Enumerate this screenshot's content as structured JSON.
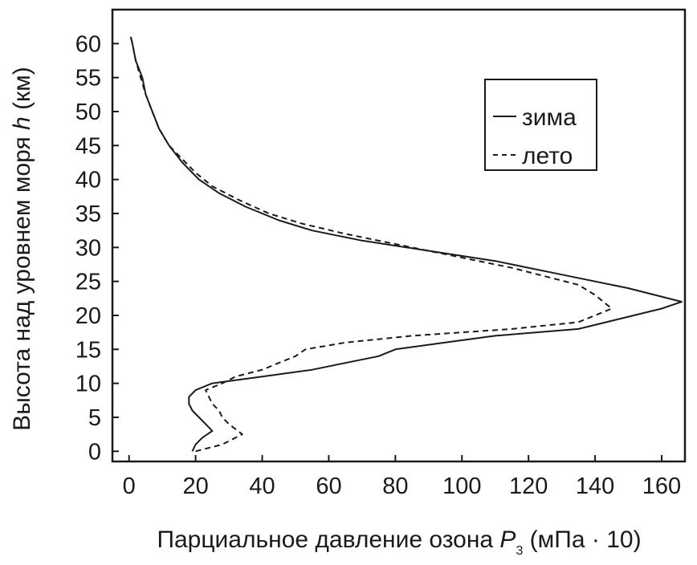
{
  "chart_data": {
    "type": "line",
    "xlabel": {
      "main": "Парциальное давление озона ",
      "var": "P",
      "sub": "3",
      "unit": " (мПа · 10)"
    },
    "ylabel": {
      "main": "Высота над уровнем моря ",
      "var": "h",
      "unit": " (км)"
    },
    "xlim": [
      -5,
      167
    ],
    "ylim": [
      -1.5,
      65
    ],
    "xticks": [
      0,
      20,
      40,
      60,
      80,
      100,
      120,
      140,
      160
    ],
    "yticks": [
      0,
      5,
      10,
      15,
      20,
      25,
      30,
      35,
      40,
      45,
      50,
      55,
      60
    ],
    "grid": false,
    "legend_position": "top-right",
    "series": [
      {
        "name": "зима",
        "style": "solid",
        "color": "#1a1a1a",
        "points": [
          [
            19,
            0
          ],
          [
            20,
            1
          ],
          [
            22,
            2
          ],
          [
            25,
            3
          ],
          [
            23,
            4
          ],
          [
            21,
            5
          ],
          [
            19,
            6
          ],
          [
            18,
            7
          ],
          [
            18,
            8
          ],
          [
            20,
            9
          ],
          [
            25,
            10
          ],
          [
            40,
            11
          ],
          [
            55,
            12
          ],
          [
            65,
            13
          ],
          [
            75,
            14
          ],
          [
            80,
            15
          ],
          [
            95,
            16
          ],
          [
            110,
            17
          ],
          [
            135,
            18
          ],
          [
            160,
            21
          ],
          [
            166,
            22
          ],
          [
            150,
            24
          ],
          [
            130,
            26
          ],
          [
            110,
            28
          ],
          [
            90,
            29.5
          ],
          [
            70,
            31
          ],
          [
            55,
            32.5
          ],
          [
            45,
            34
          ],
          [
            35,
            36
          ],
          [
            27,
            38
          ],
          [
            21,
            40
          ],
          [
            16,
            42.5
          ],
          [
            12,
            45
          ],
          [
            9,
            47.5
          ],
          [
            7,
            50
          ],
          [
            5,
            52.5
          ],
          [
            4,
            55
          ],
          [
            2,
            57.5
          ],
          [
            1,
            60
          ],
          [
            0.5,
            61
          ]
        ]
      },
      {
        "name": "лето",
        "style": "dashed",
        "color": "#1a1a1a",
        "points": [
          [
            20,
            0
          ],
          [
            28,
            1
          ],
          [
            34,
            2.5
          ],
          [
            30,
            4
          ],
          [
            28,
            5
          ],
          [
            27,
            6
          ],
          [
            25,
            7
          ],
          [
            24,
            8
          ],
          [
            23,
            9
          ],
          [
            28,
            10
          ],
          [
            32,
            11
          ],
          [
            40,
            12
          ],
          [
            45,
            13
          ],
          [
            50,
            14
          ],
          [
            53,
            15
          ],
          [
            65,
            16
          ],
          [
            85,
            17
          ],
          [
            115,
            18
          ],
          [
            135,
            19
          ],
          [
            145,
            21
          ],
          [
            140,
            23
          ],
          [
            135,
            24.5
          ],
          [
            115,
            27
          ],
          [
            95,
            29
          ],
          [
            80,
            30.5
          ],
          [
            65,
            32
          ],
          [
            52,
            33.5
          ],
          [
            42,
            35
          ],
          [
            33,
            37
          ],
          [
            25,
            39
          ],
          [
            20,
            41
          ],
          [
            16,
            43
          ],
          [
            12,
            45
          ],
          [
            9,
            47.5
          ],
          [
            7,
            50
          ],
          [
            5,
            52.5
          ],
          [
            3.5,
            55
          ],
          [
            2,
            57.5
          ],
          [
            1,
            60
          ],
          [
            0.5,
            61
          ]
        ]
      }
    ]
  }
}
